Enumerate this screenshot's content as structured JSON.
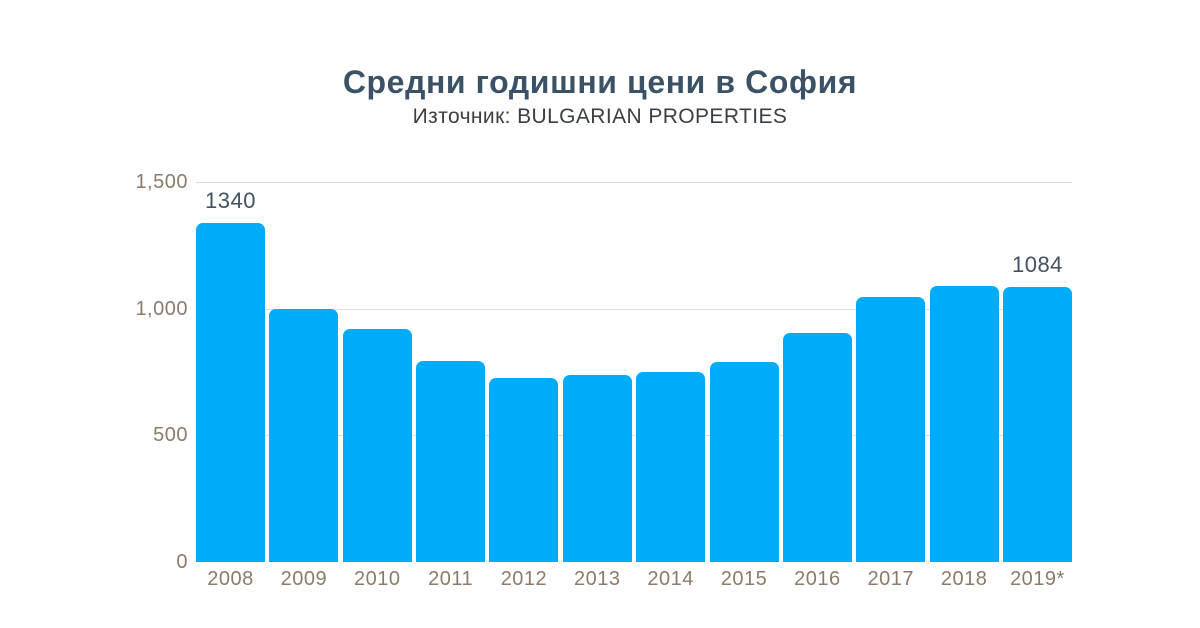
{
  "header": {
    "title": "Средни годишни цени в София",
    "subtitle": "Източник: BULGARIAN PROPERTIES"
  },
  "chart_data": {
    "type": "bar",
    "title": "Средни годишни цени в София",
    "subtitle": "Източник: BULGARIAN PROPERTIES",
    "categories": [
      "2008",
      "2009",
      "2010",
      "2011",
      "2012",
      "2013",
      "2014",
      "2015",
      "2016",
      "2017",
      "2018",
      "2019*"
    ],
    "values": [
      1340,
      1000,
      920,
      795,
      725,
      740,
      750,
      790,
      905,
      1045,
      1090,
      1084
    ],
    "shown_value_labels": {
      "0": "1340",
      "11": "1084"
    },
    "xlabel": "",
    "ylabel": "",
    "ylim": [
      0,
      1500
    ],
    "yticks": [
      {
        "value": 0,
        "label": "0"
      },
      {
        "value": 500,
        "label": "500"
      },
      {
        "value": 1000,
        "label": "1,000"
      },
      {
        "value": 1500,
        "label": "1,500"
      }
    ],
    "gridline_values": [
      500,
      1000,
      1500
    ],
    "grid": "horizontal",
    "legend": "none",
    "colors": {
      "bar": "#00ACF7",
      "title": "#3B5266",
      "subtitle": "#3A3F44",
      "value_label": "#425260",
      "axis_label": "#8C7B69",
      "gridline": "#DEDEDE",
      "background": "#FFFFFF"
    }
  }
}
